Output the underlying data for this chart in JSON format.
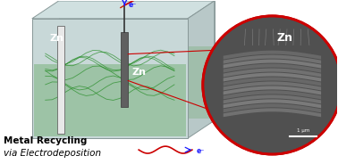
{
  "title": "Metal Recycling\nvia Electrodeposition",
  "title_bold_part": "Metal Recycling",
  "title_italic_part": "via Electrodeposition",
  "zn_label_left": "Zn",
  "zn_label_center": "Zn",
  "zn_label_circle": "Zn",
  "electron_label_top": "e⁻",
  "electron_label_bottom": "e⁻",
  "scale_bar_label": "1 μm",
  "bg_color": "#ffffff",
  "box_color_light": "#c8d8d8",
  "box_color_lighter": "#dce8e8",
  "liquid_color": "#7db87d",
  "liquid_alpha": 0.55,
  "cellulose_color": "#228B22",
  "electrode_color": "#888888",
  "wire_color_top": "#222222",
  "arrow_color_top": "#1a1aff",
  "arrow_color_bottom": "#1a1aff",
  "wave_color": "#cc0000",
  "red_line_color": "#cc0000",
  "circle_border_color": "#cc0000",
  "circle_bg_color": "#404040",
  "sem_color": "#888888"
}
